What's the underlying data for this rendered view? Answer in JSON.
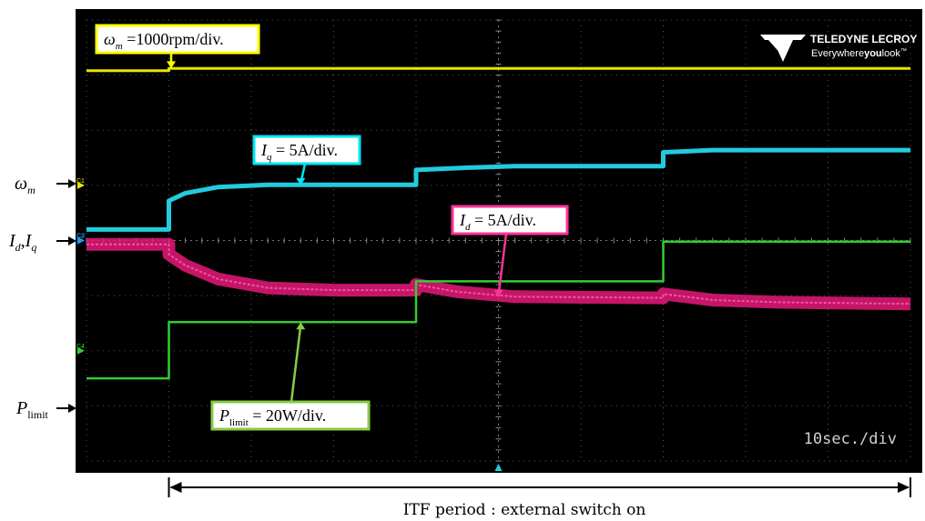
{
  "chart_data": {
    "type": "line",
    "title": "",
    "xlabel": "",
    "ylabel": "",
    "grid": true,
    "divisions": {
      "x": 10,
      "y": 8
    },
    "xlim": [
      0,
      100
    ],
    "ylim": [
      -4,
      4
    ],
    "x_scale_text": "10sec./div",
    "brand": {
      "name": "TELEDYNE LECROY",
      "slogan_pre": "Everywhere",
      "slogan_bold": "you",
      "slogan_post": "look",
      "tm": "™"
    },
    "series": [
      {
        "name": "ω_m",
        "channel": "C1",
        "color": "#e6e600",
        "channel_color": "#e6e600",
        "points": [
          [
            0,
            3.08
          ],
          [
            10,
            3.08
          ],
          [
            10,
            3.12
          ],
          [
            100,
            3.12
          ]
        ],
        "label_parts": [
          "ω",
          "m",
          " =1000rpm/div."
        ],
        "label_border": "#ffff00"
      },
      {
        "name": "I_q",
        "channel": "C2",
        "color": "#22ccdd",
        "channel_color": "#22ccdd",
        "points": [
          [
            0,
            0.2
          ],
          [
            10,
            0.2
          ],
          [
            10,
            0.72
          ],
          [
            12,
            0.86
          ],
          [
            16,
            0.97
          ],
          [
            22,
            1.01
          ],
          [
            40,
            1.01
          ],
          [
            40,
            1.28
          ],
          [
            46,
            1.32
          ],
          [
            52,
            1.35
          ],
          [
            70,
            1.35
          ],
          [
            70,
            1.6
          ],
          [
            76,
            1.64
          ],
          [
            100,
            1.64
          ]
        ],
        "label_parts": [
          "I",
          "q",
          " = 5A/div."
        ],
        "label_border": "#00e5ee"
      },
      {
        "name": "I_d",
        "channel": "C3",
        "color": "#e6197a",
        "channel_color": "#2299ff",
        "points": [
          [
            0,
            -0.07
          ],
          [
            10,
            -0.07
          ],
          [
            10,
            -0.25
          ],
          [
            12,
            -0.45
          ],
          [
            16,
            -0.7
          ],
          [
            22,
            -0.86
          ],
          [
            30,
            -0.9
          ],
          [
            40,
            -0.9
          ],
          [
            40,
            -0.8
          ],
          [
            45,
            -0.93
          ],
          [
            52,
            -1.02
          ],
          [
            70,
            -1.04
          ],
          [
            70,
            -0.97
          ],
          [
            76,
            -1.08
          ],
          [
            84,
            -1.12
          ],
          [
            100,
            -1.15
          ]
        ],
        "label_parts": [
          "I",
          "d",
          " = 5A/div."
        ],
        "label_border": "#ff3399"
      },
      {
        "name": "P_limit",
        "channel": "C4",
        "color": "#33cc33",
        "channel_color": "#33cc33",
        "points": [
          [
            0,
            -2.5
          ],
          [
            10,
            -2.5
          ],
          [
            10,
            -1.48
          ],
          [
            40,
            -1.48
          ],
          [
            40,
            -0.74
          ],
          [
            70,
            -0.74
          ],
          [
            70,
            -0.02
          ],
          [
            100,
            -0.02
          ]
        ],
        "label_parts": [
          "P",
          "limit",
          " = 20W/div."
        ],
        "label_border": "#88cc44"
      }
    ],
    "side_labels": [
      {
        "main": "ω",
        "sub": "m",
        "y": 3.1,
        "series": "ω_m"
      },
      {
        "main": "I",
        "sub": "d",
        "mid": ",",
        "main2": "I",
        "sub2": "q",
        "y": 0.0,
        "series": "I_d,I_q"
      },
      {
        "main": "P",
        "sub": "limit",
        "y": -2.5,
        "series": "P_limit"
      }
    ],
    "annotation": "ITF period : external switch on",
    "annotation_span": [
      10,
      100
    ],
    "trigger_marker_x": 50
  }
}
